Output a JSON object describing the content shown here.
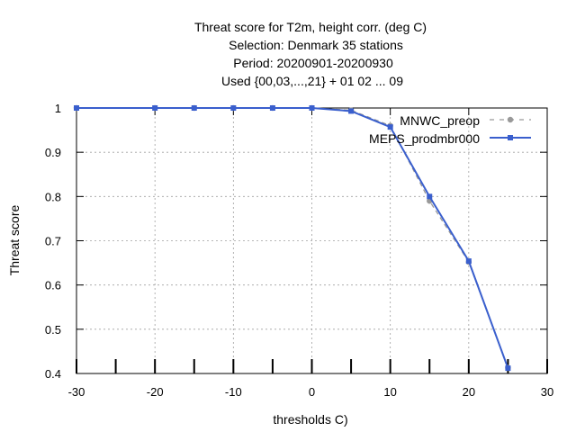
{
  "chart_data": {
    "type": "line",
    "title_lines": [
      "Threat score  for T2m, height corr. (deg C)",
      "Selection: Denmark     35 stations",
      "Period: 20200901-20200930",
      "Used {00,03,...,21} + 01 02 ... 09"
    ],
    "xlabel": "thresholds C)",
    "ylabel": "Threat score",
    "xlim": [
      -30,
      30
    ],
    "ylim": [
      0.4,
      1.0
    ],
    "xticks": [
      -30,
      -20,
      -10,
      0,
      10,
      20,
      30
    ],
    "yticks": [
      0.4,
      0.5,
      0.6,
      0.7,
      0.8,
      0.9,
      1.0
    ],
    "minor_x_ticks": [
      -25,
      -15,
      -5,
      5,
      15,
      25
    ],
    "grid": true,
    "legend_position": "top-right",
    "series": [
      {
        "name": "MNWC_preop",
        "color": "#999999",
        "dashed": true,
        "marker": "circle",
        "x": [
          -30,
          -20,
          -15,
          -10,
          -5,
          0,
          5,
          10,
          15,
          20,
          25
        ],
        "y": [
          1.0,
          1.0,
          1.0,
          1.0,
          1.0,
          1.0,
          0.995,
          0.96,
          0.79,
          0.652,
          0.413
        ]
      },
      {
        "name": "MEPS_prodmbr000",
        "color": "#3a5fcd",
        "dashed": false,
        "marker": "square",
        "x": [
          -30,
          -20,
          -15,
          -10,
          -5,
          0,
          5,
          10,
          15,
          20,
          25
        ],
        "y": [
          1.0,
          1.0,
          1.0,
          1.0,
          1.0,
          1.0,
          0.993,
          0.957,
          0.8,
          0.654,
          0.412
        ]
      }
    ]
  }
}
